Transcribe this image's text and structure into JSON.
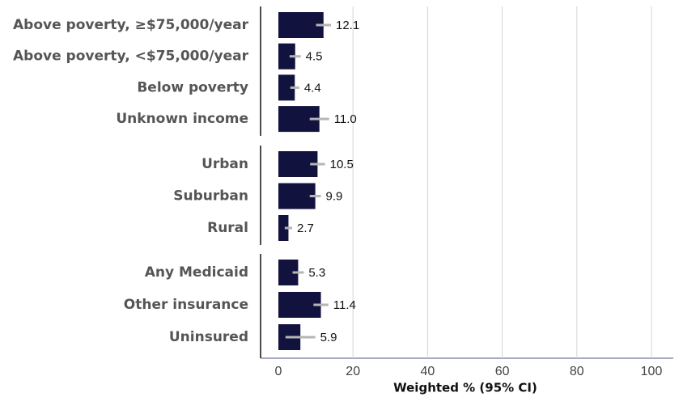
{
  "chart_data": {
    "type": "bar",
    "color": "#12123f",
    "error_color": "#b5b5b5",
    "xlabel": "Weighted % (95% CI)",
    "xlim": [
      0,
      100
    ],
    "xticks": [
      0,
      20,
      40,
      60,
      80,
      100
    ],
    "grid": true,
    "panels": [
      {
        "categories": [
          "Above poverty, ≥$75,000/year",
          "Above poverty, <$75,000/year",
          "Below poverty",
          "Unknown income"
        ],
        "values": [
          12.1,
          4.5,
          4.4,
          11.0
        ],
        "value_labels": [
          "12.1",
          "4.5",
          "4.4",
          "11.0"
        ],
        "errors": [
          2.0,
          1.5,
          1.2,
          2.6
        ]
      },
      {
        "categories": [
          "Urban",
          "Suburban",
          "Rural"
        ],
        "values": [
          10.5,
          9.9,
          2.7
        ],
        "value_labels": [
          "10.5",
          "9.9",
          "2.7"
        ],
        "errors": [
          2.0,
          1.5,
          1.0
        ]
      },
      {
        "categories": [
          "Any Medicaid",
          "Other insurance",
          "Uninsured"
        ],
        "values": [
          5.3,
          11.4,
          5.9
        ],
        "value_labels": [
          "5.3",
          "11.4",
          "5.9"
        ],
        "errors": [
          1.5,
          2.0,
          4.0
        ]
      }
    ]
  }
}
